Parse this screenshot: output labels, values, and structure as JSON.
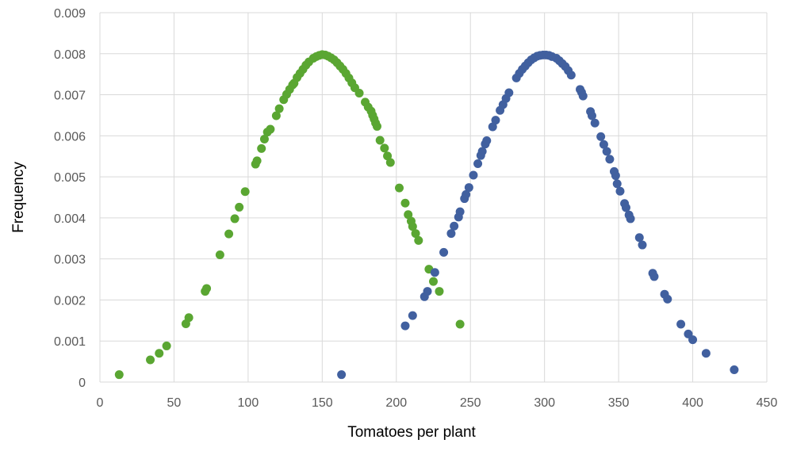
{
  "chart_data": {
    "type": "scatter",
    "xlabel": "Tomatoes per plant",
    "ylabel": "Frequency",
    "xlim": [
      0,
      450
    ],
    "ylim": [
      0,
      0.009
    ],
    "x_ticks": [
      "0",
      "50",
      "100",
      "150",
      "200",
      "250",
      "300",
      "350",
      "400",
      "450"
    ],
    "y_ticks": [
      "0",
      "0.001",
      "0.002",
      "0.003",
      "0.004",
      "0.005",
      "0.006",
      "0.007",
      "0.008",
      "0.009"
    ],
    "grid": true,
    "legend": "none",
    "series": [
      {
        "color": "#5aa632",
        "points": [
          [
            13,
            0.00018
          ],
          [
            34,
            0.00054
          ],
          [
            40,
            0.0007
          ],
          [
            45,
            0.00088
          ],
          [
            58,
            0.00142
          ],
          [
            60,
            0.00157
          ],
          [
            71,
            0.00221
          ],
          [
            72,
            0.00228
          ],
          [
            81,
            0.0031
          ],
          [
            87,
            0.00361
          ],
          [
            91,
            0.00398
          ],
          [
            94,
            0.00426
          ],
          [
            98,
            0.00464
          ],
          [
            105,
            0.00531
          ],
          [
            106,
            0.00539
          ],
          [
            109,
            0.00569
          ],
          [
            111,
            0.00592
          ],
          [
            113,
            0.00609
          ],
          [
            115,
            0.00616
          ],
          [
            119,
            0.00649
          ],
          [
            121,
            0.00666
          ],
          [
            124,
            0.00688
          ],
          [
            126,
            0.00701
          ],
          [
            128,
            0.00713
          ],
          [
            130,
            0.00724
          ],
          [
            131,
            0.00728
          ],
          [
            133,
            0.00742
          ],
          [
            135,
            0.00752
          ],
          [
            137,
            0.00762
          ],
          [
            139,
            0.00772
          ],
          [
            141,
            0.0078
          ],
          [
            144,
            0.00789
          ],
          [
            146,
            0.00793
          ],
          [
            148,
            0.00796
          ],
          [
            150,
            0.00798
          ],
          [
            152,
            0.00797
          ],
          [
            154,
            0.00794
          ],
          [
            156,
            0.0079
          ],
          [
            158,
            0.00785
          ],
          [
            160,
            0.00778
          ],
          [
            162,
            0.0077
          ],
          [
            164,
            0.00762
          ],
          [
            166,
            0.00752
          ],
          [
            168,
            0.00741
          ],
          [
            170,
            0.00729
          ],
          [
            172,
            0.00717
          ],
          [
            175,
            0.00704
          ],
          [
            179,
            0.00682
          ],
          [
            181,
            0.0067
          ],
          [
            183,
            0.0066
          ],
          [
            184,
            0.0065
          ],
          [
            185,
            0.00641
          ],
          [
            186,
            0.00631
          ],
          [
            187,
            0.00623
          ],
          [
            189,
            0.00589
          ],
          [
            192,
            0.0057
          ],
          [
            194,
            0.00551
          ],
          [
            196,
            0.00535
          ],
          [
            202,
            0.00473
          ],
          [
            206,
            0.00436
          ],
          [
            208,
            0.00408
          ],
          [
            210,
            0.00392
          ],
          [
            211,
            0.00379
          ],
          [
            213,
            0.00362
          ],
          [
            215,
            0.00345
          ],
          [
            222,
            0.00275
          ],
          [
            225,
            0.00245
          ],
          [
            229,
            0.00221
          ],
          [
            243,
            0.00141
          ]
        ]
      },
      {
        "color": "#41609f",
        "points": [
          [
            163,
            0.00018
          ],
          [
            206,
            0.00137
          ],
          [
            211,
            0.00162
          ],
          [
            219,
            0.00208
          ],
          [
            221,
            0.00221
          ],
          [
            226,
            0.00267
          ],
          [
            232,
            0.00316
          ],
          [
            237,
            0.00362
          ],
          [
            239,
            0.0038
          ],
          [
            242,
            0.00402
          ],
          [
            243,
            0.00415
          ],
          [
            246,
            0.00447
          ],
          [
            247,
            0.00457
          ],
          [
            249,
            0.00474
          ],
          [
            252,
            0.00504
          ],
          [
            255,
            0.00532
          ],
          [
            257,
            0.00552
          ],
          [
            258,
            0.00562
          ],
          [
            260,
            0.0058
          ],
          [
            261,
            0.00588
          ],
          [
            265,
            0.00622
          ],
          [
            267,
            0.00638
          ],
          [
            270,
            0.00662
          ],
          [
            272,
            0.00676
          ],
          [
            274,
            0.00691
          ],
          [
            276,
            0.00705
          ],
          [
            281,
            0.00741
          ],
          [
            283,
            0.00752
          ],
          [
            285,
            0.00762
          ],
          [
            287,
            0.0077
          ],
          [
            289,
            0.00778
          ],
          [
            291,
            0.00785
          ],
          [
            293,
            0.0079
          ],
          [
            295,
            0.00794
          ],
          [
            297,
            0.00796
          ],
          [
            299,
            0.00797
          ],
          [
            301,
            0.00797
          ],
          [
            303,
            0.00796
          ],
          [
            305,
            0.00793
          ],
          [
            308,
            0.00789
          ],
          [
            310,
            0.00783
          ],
          [
            312,
            0.00776
          ],
          [
            314,
            0.00769
          ],
          [
            316,
            0.00759
          ],
          [
            318,
            0.00748
          ],
          [
            324,
            0.00713
          ],
          [
            325,
            0.00706
          ],
          [
            326,
            0.00697
          ],
          [
            331,
            0.00659
          ],
          [
            332,
            0.00649
          ],
          [
            334,
            0.00631
          ],
          [
            338,
            0.00598
          ],
          [
            340,
            0.00579
          ],
          [
            342,
            0.00562
          ],
          [
            344,
            0.00543
          ],
          [
            347,
            0.00513
          ],
          [
            348,
            0.00503
          ],
          [
            349,
            0.00483
          ],
          [
            351,
            0.00465
          ],
          [
            354,
            0.00435
          ],
          [
            355,
            0.00425
          ],
          [
            357,
            0.00407
          ],
          [
            358,
            0.00398
          ],
          [
            364,
            0.00352
          ],
          [
            366,
            0.00334
          ],
          [
            373,
            0.00265
          ],
          [
            374,
            0.00257
          ],
          [
            381,
            0.00214
          ],
          [
            383,
            0.00202
          ],
          [
            392,
            0.00141
          ],
          [
            397,
            0.00117
          ],
          [
            400,
            0.00103
          ],
          [
            409,
            0.0007
          ],
          [
            428,
            0.0003
          ]
        ]
      }
    ]
  }
}
